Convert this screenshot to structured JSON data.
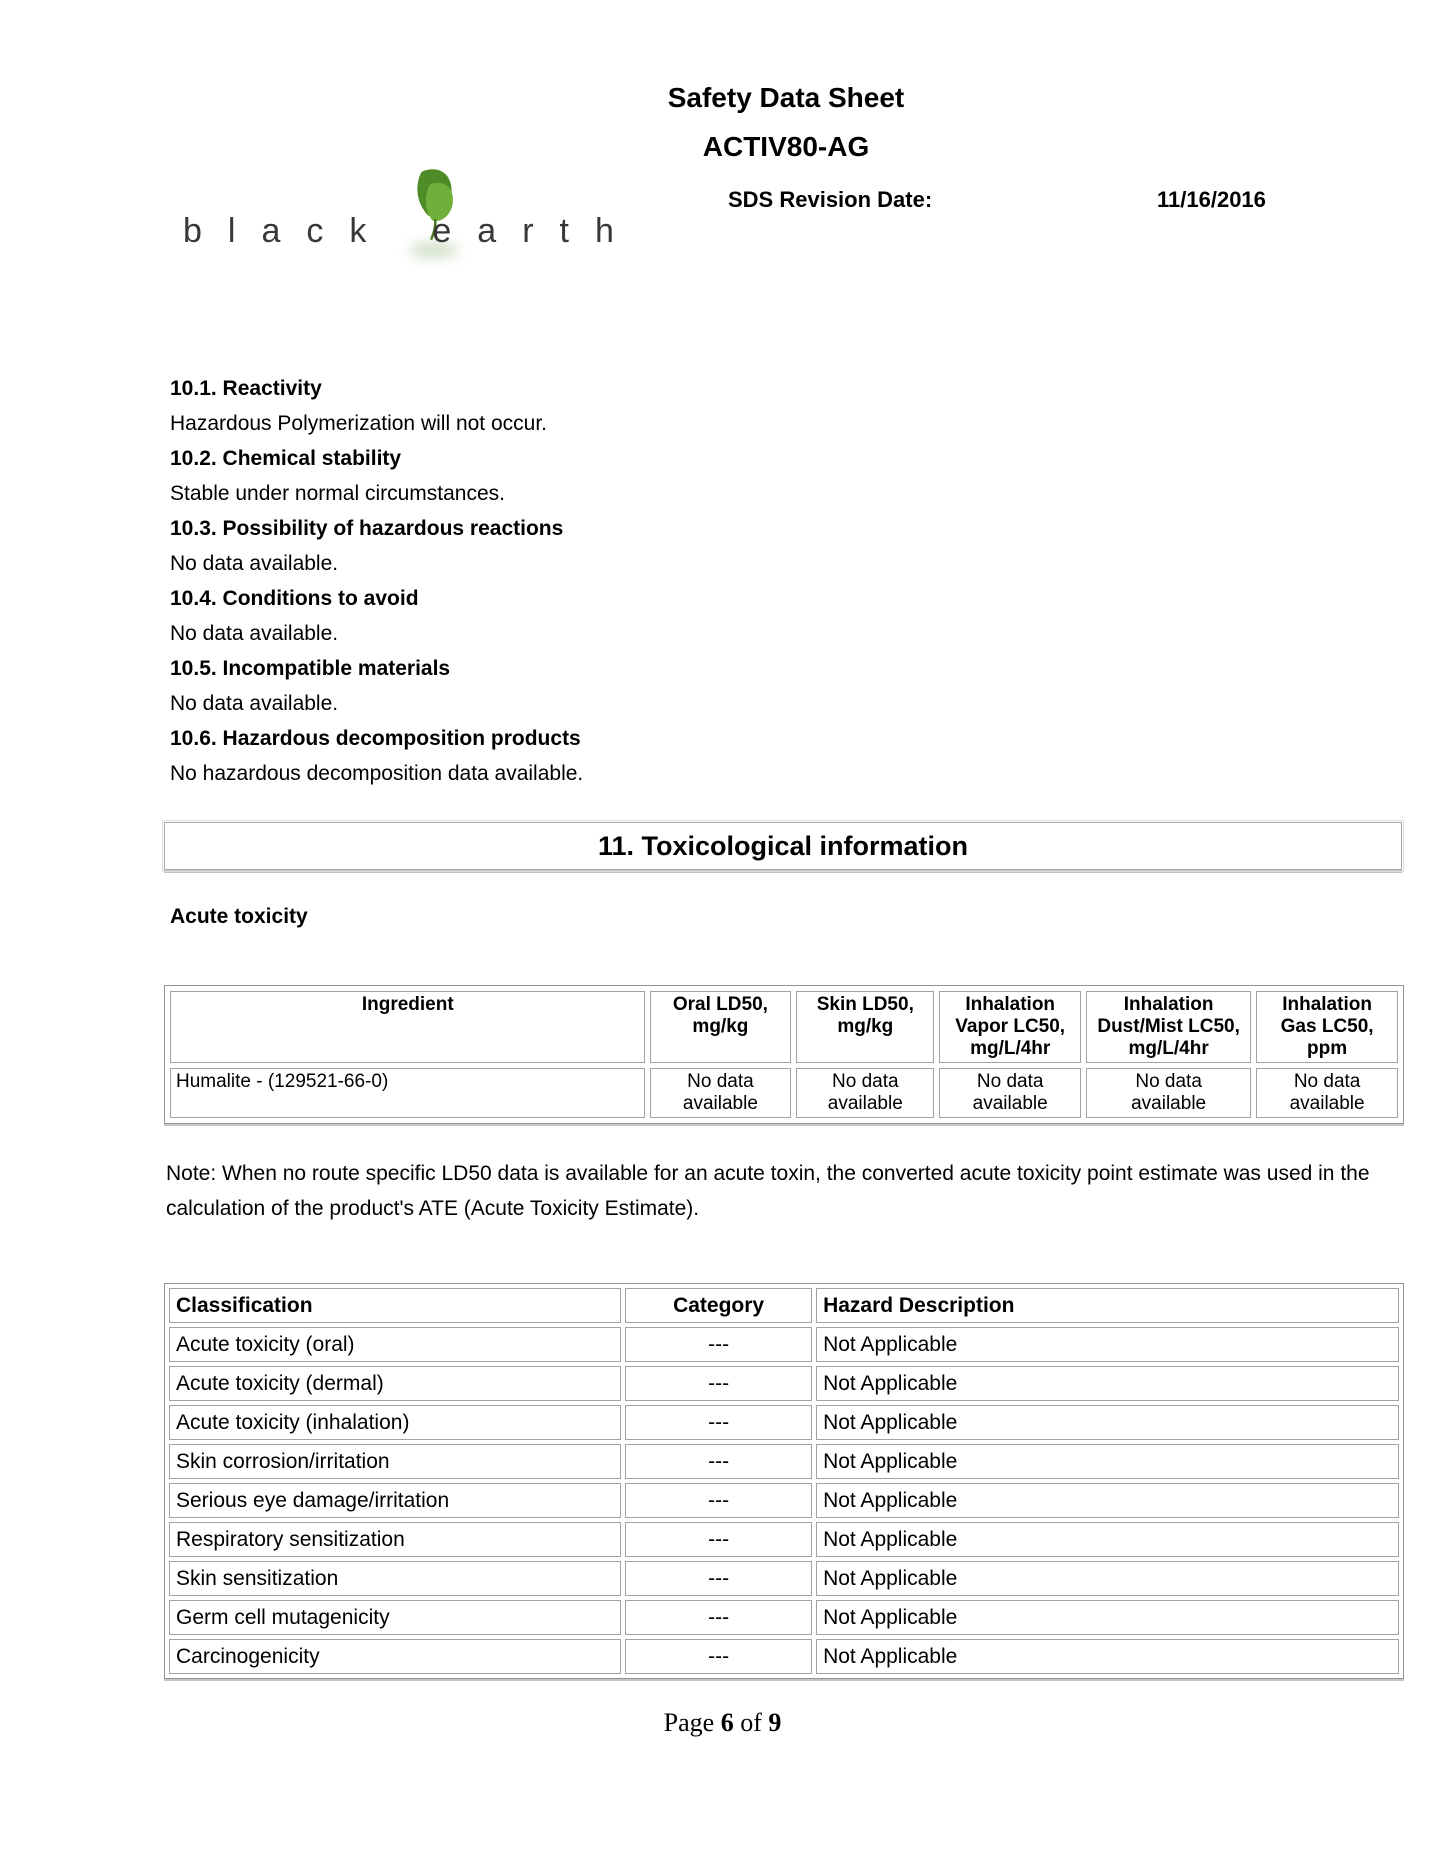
{
  "header": {
    "doc_title": "Safety Data Sheet",
    "product_name": "ACTIV80-AG",
    "revision_label": "SDS Revision Date:",
    "revision_date": "11/16/2016",
    "logo": {
      "word1": "black",
      "word2": "earth",
      "leaf_icon": "leaf-icon",
      "leaf_color_dark": "#4e8c27",
      "leaf_color_light": "#6fb03a",
      "text_color": "#383838"
    }
  },
  "section10": {
    "items": [
      {
        "heading": "10.1. Reactivity",
        "body": "Hazardous Polymerization will not occur."
      },
      {
        "heading": "10.2. Chemical stability",
        "body": "Stable under normal circumstances."
      },
      {
        "heading": "10.3. Possibility of hazardous reactions",
        "body": "No data available."
      },
      {
        "heading": "10.4. Conditions to avoid",
        "body": "No data available."
      },
      {
        "heading": "10.5. Incompatible materials",
        "body": "No data available."
      },
      {
        "heading": "10.6. Hazardous decomposition products",
        "body": "No hazardous decomposition data available."
      }
    ]
  },
  "section11": {
    "banner_title": "11. Toxicological information",
    "acute_toxicity_heading": "Acute toxicity",
    "toxicity_table": {
      "headers": [
        [
          "Ingredient"
        ],
        [
          "Oral LD50,",
          "mg/kg"
        ],
        [
          "Skin LD50,",
          "mg/kg"
        ],
        [
          "Inhalation",
          "Vapor LC50,",
          "mg/L/4hr"
        ],
        [
          "Inhalation",
          "Dust/Mist LC50,",
          "mg/L/4hr"
        ],
        [
          "Inhalation",
          "Gas LC50,",
          "ppm"
        ]
      ],
      "rows": [
        [
          [
            "Humalite - (129521-66-0)"
          ],
          [
            "No data",
            "available"
          ],
          [
            "No data",
            "available"
          ],
          [
            "No data",
            "available"
          ],
          [
            "No data",
            "available"
          ],
          [
            "No data",
            "available"
          ]
        ]
      ]
    },
    "note": "Note: When no route specific LD50 data is available for an acute toxin, the converted acute toxicity point estimate was used in the calculation of the product's ATE (Acute Toxicity Estimate).",
    "classification_table": {
      "headers": [
        "Classification",
        "Category",
        "Hazard Description"
      ],
      "rows": [
        [
          "Acute toxicity (oral)",
          "---",
          "Not Applicable"
        ],
        [
          "Acute toxicity (dermal)",
          "---",
          "Not Applicable"
        ],
        [
          "Acute toxicity (inhalation)",
          "---",
          "Not Applicable"
        ],
        [
          "Skin corrosion/irritation",
          "---",
          "Not Applicable"
        ],
        [
          "Serious eye damage/irritation",
          "---",
          "Not Applicable"
        ],
        [
          "Respiratory sensitization",
          "---",
          "Not Applicable"
        ],
        [
          "Skin sensitization",
          "---",
          "Not Applicable"
        ],
        [
          "Germ cell mutagenicity",
          "---",
          "Not Applicable"
        ],
        [
          "Carcinogenicity",
          "---",
          "Not Applicable"
        ]
      ]
    }
  },
  "footer": {
    "page_word": "Page",
    "page_number": "6",
    "of_word": "of",
    "page_total": "9"
  }
}
